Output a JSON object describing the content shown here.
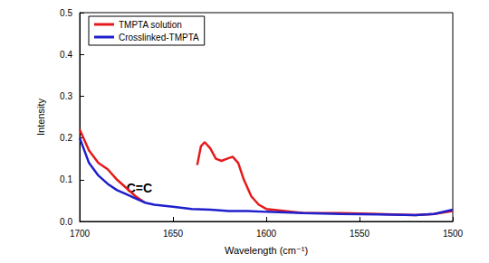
{
  "chart_data": {
    "type": "line",
    "x_label": "Wavelength (cm⁻¹)",
    "y_label": "Intensity",
    "xlim": [
      1700,
      1500
    ],
    "xticks": [
      1700,
      1650,
      1600,
      1550,
      1500
    ],
    "ylim": [
      0,
      0.5
    ],
    "yticks": [
      {
        "value": 0,
        "label": "0.0"
      },
      0.1,
      0.2,
      0.3,
      0.4,
      0.5
    ],
    "grid": false,
    "legend": "upper left",
    "annotations": [
      {
        "text": "C=C",
        "x": 1668,
        "y": 0.08
      }
    ],
    "series": [
      {
        "name": "TMPTA solution",
        "color": "#e41a1c",
        "x": [
          1700,
          1695,
          1690,
          1685,
          1680,
          1675,
          1670,
          1665,
          1650,
          1637,
          1635,
          1633,
          1630,
          1627,
          1624,
          1621,
          1618,
          1615,
          1612,
          1608,
          1604,
          1600,
          1590,
          1580,
          1560,
          1540,
          1520,
          1510,
          1500
        ],
        "values": [
          0.22,
          0.17,
          0.14,
          0.125,
          0.1,
          0.08,
          0.06,
          0.045,
          null,
          0.135,
          0.18,
          0.19,
          0.175,
          0.15,
          0.145,
          0.15,
          0.155,
          0.14,
          0.1,
          0.06,
          0.04,
          0.03,
          0.025,
          0.02,
          0.02,
          0.018,
          0.015,
          0.018,
          0.025
        ]
      },
      {
        "name": "Crosslinked-TMPTA",
        "color": "#1f1fcc",
        "x": [
          1700,
          1695,
          1690,
          1685,
          1680,
          1675,
          1670,
          1665,
          1660,
          1650,
          1640,
          1630,
          1620,
          1610,
          1600,
          1580,
          1560,
          1540,
          1520,
          1510,
          1500
        ],
        "values": [
          0.2,
          0.14,
          0.11,
          0.09,
          0.075,
          0.065,
          0.055,
          0.045,
          0.04,
          0.035,
          0.03,
          0.028,
          0.025,
          0.025,
          0.023,
          0.02,
          0.018,
          0.017,
          0.015,
          0.018,
          0.028
        ]
      }
    ]
  }
}
